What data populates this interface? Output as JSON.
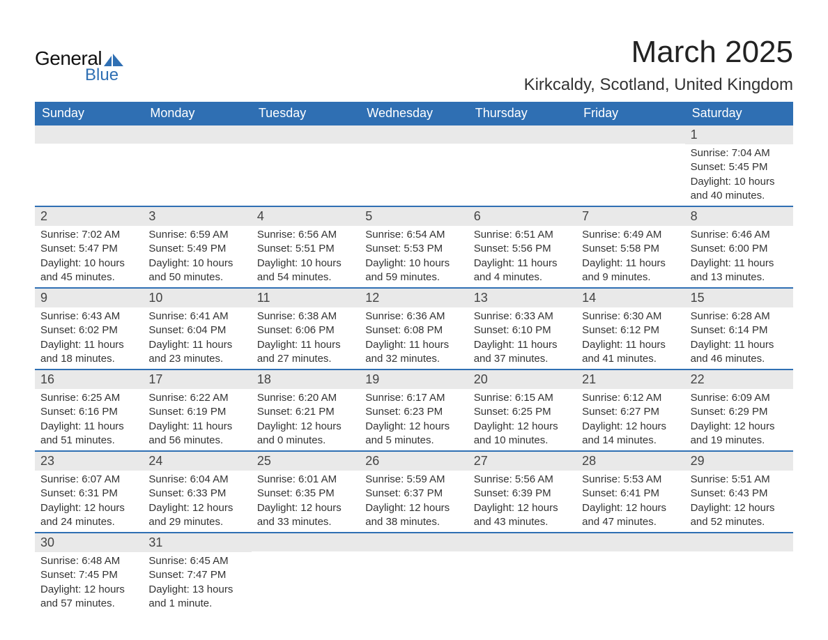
{
  "brand": {
    "name_top": "General",
    "name_bottom": "Blue",
    "text_color": "#111111",
    "accent_color": "#2f6fb3"
  },
  "title": "March 2025",
  "location": "Kirkcaldy, Scotland, United Kingdom",
  "style": {
    "header_bg": "#2f6fb3",
    "header_text": "#ffffff",
    "daynum_bg": "#e9e9e9",
    "week_divider": "#2f6fb3",
    "body_text": "#333333",
    "title_fontsize": 44,
    "location_fontsize": 24,
    "dayheader_fontsize": 18,
    "daynum_fontsize": 18,
    "detail_fontsize": 15
  },
  "day_names": [
    "Sunday",
    "Monday",
    "Tuesday",
    "Wednesday",
    "Thursday",
    "Friday",
    "Saturday"
  ],
  "weeks": [
    [
      null,
      null,
      null,
      null,
      null,
      null,
      {
        "n": "1",
        "sunrise": "Sunrise: 7:04 AM",
        "sunset": "Sunset: 5:45 PM",
        "daylight": "Daylight: 10 hours and 40 minutes."
      }
    ],
    [
      {
        "n": "2",
        "sunrise": "Sunrise: 7:02 AM",
        "sunset": "Sunset: 5:47 PM",
        "daylight": "Daylight: 10 hours and 45 minutes."
      },
      {
        "n": "3",
        "sunrise": "Sunrise: 6:59 AM",
        "sunset": "Sunset: 5:49 PM",
        "daylight": "Daylight: 10 hours and 50 minutes."
      },
      {
        "n": "4",
        "sunrise": "Sunrise: 6:56 AM",
        "sunset": "Sunset: 5:51 PM",
        "daylight": "Daylight: 10 hours and 54 minutes."
      },
      {
        "n": "5",
        "sunrise": "Sunrise: 6:54 AM",
        "sunset": "Sunset: 5:53 PM",
        "daylight": "Daylight: 10 hours and 59 minutes."
      },
      {
        "n": "6",
        "sunrise": "Sunrise: 6:51 AM",
        "sunset": "Sunset: 5:56 PM",
        "daylight": "Daylight: 11 hours and 4 minutes."
      },
      {
        "n": "7",
        "sunrise": "Sunrise: 6:49 AM",
        "sunset": "Sunset: 5:58 PM",
        "daylight": "Daylight: 11 hours and 9 minutes."
      },
      {
        "n": "8",
        "sunrise": "Sunrise: 6:46 AM",
        "sunset": "Sunset: 6:00 PM",
        "daylight": "Daylight: 11 hours and 13 minutes."
      }
    ],
    [
      {
        "n": "9",
        "sunrise": "Sunrise: 6:43 AM",
        "sunset": "Sunset: 6:02 PM",
        "daylight": "Daylight: 11 hours and 18 minutes."
      },
      {
        "n": "10",
        "sunrise": "Sunrise: 6:41 AM",
        "sunset": "Sunset: 6:04 PM",
        "daylight": "Daylight: 11 hours and 23 minutes."
      },
      {
        "n": "11",
        "sunrise": "Sunrise: 6:38 AM",
        "sunset": "Sunset: 6:06 PM",
        "daylight": "Daylight: 11 hours and 27 minutes."
      },
      {
        "n": "12",
        "sunrise": "Sunrise: 6:36 AM",
        "sunset": "Sunset: 6:08 PM",
        "daylight": "Daylight: 11 hours and 32 minutes."
      },
      {
        "n": "13",
        "sunrise": "Sunrise: 6:33 AM",
        "sunset": "Sunset: 6:10 PM",
        "daylight": "Daylight: 11 hours and 37 minutes."
      },
      {
        "n": "14",
        "sunrise": "Sunrise: 6:30 AM",
        "sunset": "Sunset: 6:12 PM",
        "daylight": "Daylight: 11 hours and 41 minutes."
      },
      {
        "n": "15",
        "sunrise": "Sunrise: 6:28 AM",
        "sunset": "Sunset: 6:14 PM",
        "daylight": "Daylight: 11 hours and 46 minutes."
      }
    ],
    [
      {
        "n": "16",
        "sunrise": "Sunrise: 6:25 AM",
        "sunset": "Sunset: 6:16 PM",
        "daylight": "Daylight: 11 hours and 51 minutes."
      },
      {
        "n": "17",
        "sunrise": "Sunrise: 6:22 AM",
        "sunset": "Sunset: 6:19 PM",
        "daylight": "Daylight: 11 hours and 56 minutes."
      },
      {
        "n": "18",
        "sunrise": "Sunrise: 6:20 AM",
        "sunset": "Sunset: 6:21 PM",
        "daylight": "Daylight: 12 hours and 0 minutes."
      },
      {
        "n": "19",
        "sunrise": "Sunrise: 6:17 AM",
        "sunset": "Sunset: 6:23 PM",
        "daylight": "Daylight: 12 hours and 5 minutes."
      },
      {
        "n": "20",
        "sunrise": "Sunrise: 6:15 AM",
        "sunset": "Sunset: 6:25 PM",
        "daylight": "Daylight: 12 hours and 10 minutes."
      },
      {
        "n": "21",
        "sunrise": "Sunrise: 6:12 AM",
        "sunset": "Sunset: 6:27 PM",
        "daylight": "Daylight: 12 hours and 14 minutes."
      },
      {
        "n": "22",
        "sunrise": "Sunrise: 6:09 AM",
        "sunset": "Sunset: 6:29 PM",
        "daylight": "Daylight: 12 hours and 19 minutes."
      }
    ],
    [
      {
        "n": "23",
        "sunrise": "Sunrise: 6:07 AM",
        "sunset": "Sunset: 6:31 PM",
        "daylight": "Daylight: 12 hours and 24 minutes."
      },
      {
        "n": "24",
        "sunrise": "Sunrise: 6:04 AM",
        "sunset": "Sunset: 6:33 PM",
        "daylight": "Daylight: 12 hours and 29 minutes."
      },
      {
        "n": "25",
        "sunrise": "Sunrise: 6:01 AM",
        "sunset": "Sunset: 6:35 PM",
        "daylight": "Daylight: 12 hours and 33 minutes."
      },
      {
        "n": "26",
        "sunrise": "Sunrise: 5:59 AM",
        "sunset": "Sunset: 6:37 PM",
        "daylight": "Daylight: 12 hours and 38 minutes."
      },
      {
        "n": "27",
        "sunrise": "Sunrise: 5:56 AM",
        "sunset": "Sunset: 6:39 PM",
        "daylight": "Daylight: 12 hours and 43 minutes."
      },
      {
        "n": "28",
        "sunrise": "Sunrise: 5:53 AM",
        "sunset": "Sunset: 6:41 PM",
        "daylight": "Daylight: 12 hours and 47 minutes."
      },
      {
        "n": "29",
        "sunrise": "Sunrise: 5:51 AM",
        "sunset": "Sunset: 6:43 PM",
        "daylight": "Daylight: 12 hours and 52 minutes."
      }
    ],
    [
      {
        "n": "30",
        "sunrise": "Sunrise: 6:48 AM",
        "sunset": "Sunset: 7:45 PM",
        "daylight": "Daylight: 12 hours and 57 minutes."
      },
      {
        "n": "31",
        "sunrise": "Sunrise: 6:45 AM",
        "sunset": "Sunset: 7:47 PM",
        "daylight": "Daylight: 13 hours and 1 minute."
      },
      null,
      null,
      null,
      null,
      null
    ]
  ]
}
